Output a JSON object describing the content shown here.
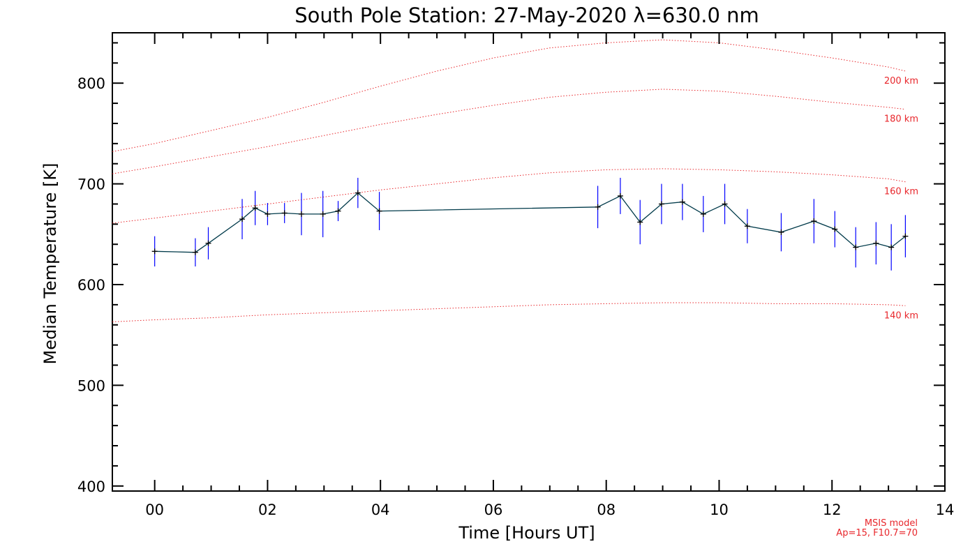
{
  "chart_data": {
    "type": "line",
    "title": "South Pole Station: 27-May-2020 λ=630.0 nm",
    "xlabel": "Time [Hours UT]",
    "ylabel": "Median Temperature [K]",
    "xlim": [
      -0.75,
      14
    ],
    "ylim": [
      395,
      850
    ],
    "x_ticks": [
      0,
      2,
      4,
      6,
      8,
      10,
      12,
      14
    ],
    "x_tick_labels": [
      "00",
      "02",
      "04",
      "06",
      "08",
      "10",
      "12",
      "14"
    ],
    "y_ticks": [
      400,
      500,
      600,
      700,
      800
    ],
    "y_tick_labels": [
      "400",
      "500",
      "600",
      "700",
      "800"
    ],
    "series": [
      {
        "name": "Median Temperature",
        "color": "#003a4a",
        "error_color": "#0000ff",
        "x": [
          0.0,
          0.72,
          0.95,
          1.55,
          1.78,
          2.0,
          2.3,
          2.6,
          2.98,
          3.25,
          3.6,
          3.98,
          7.85,
          8.25,
          8.6,
          8.98,
          9.35,
          9.72,
          10.1,
          10.5,
          11.1,
          11.68,
          12.05,
          12.42,
          12.78,
          13.05,
          13.3
        ],
        "y": [
          633,
          632,
          641,
          665,
          676,
          670,
          671,
          670,
          670,
          673,
          691,
          673,
          677,
          688,
          662,
          680,
          682,
          670,
          680,
          658,
          652,
          663,
          655,
          637,
          641,
          637,
          648
        ],
        "err": [
          15,
          14,
          16,
          20,
          17,
          11,
          10,
          21,
          23,
          10,
          15,
          19,
          21,
          18,
          22,
          20,
          18,
          18,
          20,
          17,
          19,
          22,
          18,
          20,
          21,
          23,
          21
        ]
      }
    ],
    "model_curves": [
      {
        "label": "200 km",
        "color": "#e8262b",
        "x": [
          -0.75,
          0,
          1,
          2,
          3,
          4,
          5,
          6,
          7,
          8,
          9,
          10,
          11,
          12,
          13,
          13.3
        ],
        "y": [
          732,
          740,
          753,
          766,
          781,
          797,
          812,
          825,
          835,
          840,
          843,
          840,
          833,
          825,
          816,
          812
        ]
      },
      {
        "label": "180 km",
        "color": "#e8262b",
        "x": [
          -0.75,
          0,
          1,
          2,
          3,
          4,
          5,
          6,
          7,
          8,
          9,
          10,
          11,
          12,
          13,
          13.3
        ],
        "y": [
          710,
          717,
          727,
          737,
          748,
          759,
          769,
          778,
          786,
          791,
          794,
          792,
          787,
          781,
          776,
          774
        ]
      },
      {
        "label": "160 km",
        "color": "#e8262b",
        "x": [
          -0.75,
          0,
          1,
          2,
          3,
          4,
          5,
          6,
          7,
          8,
          9,
          10,
          11,
          12,
          13,
          13.3
        ],
        "y": [
          661,
          666,
          673,
          680,
          687,
          694,
          700,
          706,
          711,
          714,
          715,
          714,
          712,
          709,
          705,
          702
        ]
      },
      {
        "label": "140 km",
        "color": "#e8262b",
        "x": [
          -0.75,
          0,
          1,
          2,
          3,
          4,
          5,
          6,
          7,
          8,
          9,
          10,
          11,
          12,
          13,
          13.3
        ],
        "y": [
          563,
          565,
          567,
          570,
          572,
          574,
          576,
          578,
          580,
          581,
          582,
          582,
          581,
          581,
          580,
          579
        ]
      }
    ],
    "annotations": [
      "MSIS model",
      "Ap=15, F10.7=70"
    ],
    "grid": false
  }
}
